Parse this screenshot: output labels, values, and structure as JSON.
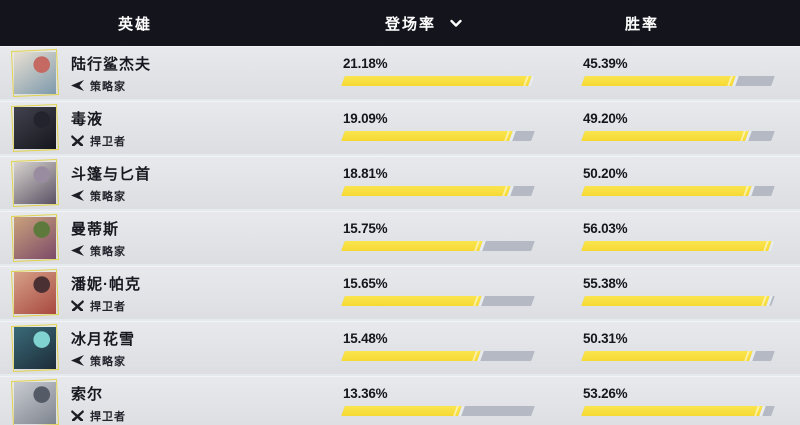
{
  "header": {
    "hero": "英雄",
    "pick_rate": "登场率",
    "win_rate": "胜率"
  },
  "columns": {
    "pick_rate_max": 21.18,
    "win_rate_max": 56.03
  },
  "colors": {
    "accent_yellow": "#f6d933",
    "bar_track": "#b4b9c4",
    "header_bg": "#14141d",
    "row_bg": "#e0e2e5",
    "text_dark": "#15151d"
  },
  "icons": {
    "sort": "chevron-down-icon",
    "strategist": "strategist-arrow-icon",
    "vanguard": "vanguard-cross-icon"
  },
  "rows": [
    {
      "name": "陆行鲨杰夫",
      "role": "策略家",
      "role_type": "strategist",
      "pick_rate": "21.18%",
      "pick_fill": 100,
      "win_rate": "45.39%",
      "win_fill": 81,
      "avatar_colors": [
        "#e8e0d2",
        "#7d99ac",
        "#c46a63"
      ]
    },
    {
      "name": "毒液",
      "role": "捍卫者",
      "role_type": "vanguard",
      "pick_rate": "19.09%",
      "pick_fill": 90.1,
      "win_rate": "49.20%",
      "win_fill": 87.8,
      "avatar_colors": [
        "#42424f",
        "#16161d",
        "#23232e"
      ]
    },
    {
      "name": "斗篷与匕首",
      "role": "策略家",
      "role_type": "strategist",
      "pick_rate": "18.81%",
      "pick_fill": 88.8,
      "win_rate": "50.20%",
      "win_fill": 89.6,
      "avatar_colors": [
        "#d8d4cf",
        "#5a5264",
        "#9a8ca0"
      ]
    },
    {
      "name": "曼蒂斯",
      "role": "策略家",
      "role_type": "strategist",
      "pick_rate": "15.75%",
      "pick_fill": 74.4,
      "win_rate": "56.03%",
      "win_fill": 100,
      "avatar_colors": [
        "#caa27c",
        "#7c4a68",
        "#5d7a3c"
      ]
    },
    {
      "name": "潘妮·帕克",
      "role": "捍卫者",
      "role_type": "vanguard",
      "pick_rate": "15.65%",
      "pick_fill": 73.9,
      "win_rate": "55.38%",
      "win_fill": 98.8,
      "avatar_colors": [
        "#d6a187",
        "#a84840",
        "#4a2f33"
      ]
    },
    {
      "name": "冰月花雪",
      "role": "策略家",
      "role_type": "strategist",
      "pick_rate": "15.48%",
      "pick_fill": 73.1,
      "win_rate": "50.31%",
      "win_fill": 89.8,
      "avatar_colors": [
        "#3a6a78",
        "#1d2c38",
        "#7fd2cf"
      ]
    },
    {
      "name": "索尔",
      "role": "捍卫者",
      "role_type": "vanguard",
      "pick_rate": "13.36%",
      "pick_fill": 63.1,
      "win_rate": "53.26%",
      "win_fill": 95.1,
      "avatar_colors": [
        "#c9ccd2",
        "#7e848e",
        "#555b66"
      ]
    }
  ]
}
